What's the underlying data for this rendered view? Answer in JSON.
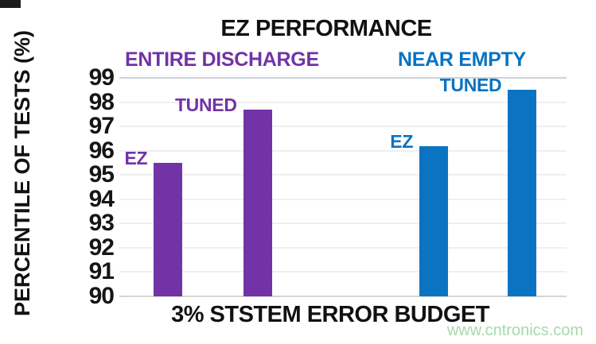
{
  "chart_data": {
    "type": "bar",
    "title": "EZ PERFORMANCE",
    "xlabel": "3% STSTEM ERROR BUDGET",
    "ylabel": "PERCENTILE OF TESTS (%)",
    "ylim": [
      90,
      99
    ],
    "ytick_step": 1,
    "yticks": [
      99,
      98,
      97,
      96,
      95,
      94,
      93,
      92,
      91,
      90
    ],
    "grid": true,
    "legend_position": "none",
    "groups": [
      {
        "label": "ENTIRE DISCHARGE",
        "color": "#7133a5",
        "bars": [
          {
            "label": "EZ",
            "value": 95.5
          },
          {
            "label": "TUNED",
            "value": 97.7
          }
        ]
      },
      {
        "label": "NEAR EMPTY",
        "color": "#0a73c2",
        "bars": [
          {
            "label": "EZ",
            "value": 96.2
          },
          {
            "label": "TUNED",
            "value": 98.5
          }
        ]
      }
    ]
  },
  "watermark": {
    "text": "www.cntronics.com",
    "color": "#a6d9ad"
  },
  "colors": {
    "background": "#ffffff",
    "text": "#111111",
    "gridline": "#efefef",
    "gridline_top": "#c9d3dc",
    "gridline_base": "#d6d6d6"
  }
}
